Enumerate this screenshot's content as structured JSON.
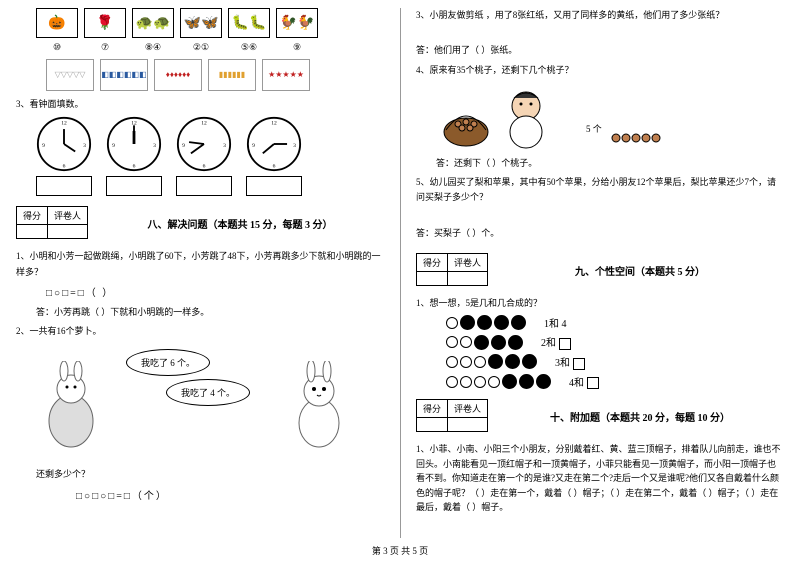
{
  "footer": "第 3 页 共 5 页",
  "left": {
    "icons": [
      "🎃",
      "🌹",
      "🐢🐢",
      "🦋🦋",
      "🐛🐛",
      "🐓🐓"
    ],
    "icon_nums": [
      "⑩",
      "⑦",
      "⑧④",
      "②①",
      "⑤⑥",
      "⑨"
    ],
    "shapes": [
      "▽▽▽▽▽",
      "◧◧◧◧◧◧",
      "♦♦♦♦♦♦",
      "▮▮▮▮▮▮",
      "★★★★★"
    ],
    "shape_colors": [
      "#a0a0a0",
      "#2a5aa0",
      "#c02020",
      "#e0a030",
      "#c02020"
    ],
    "q3_title": "3、看钟面填数。",
    "clocks": [
      {
        "h": 10,
        "m": 7
      },
      {
        "h": 12,
        "m": 0
      },
      {
        "h": 9,
        "m": 40
      },
      {
        "h": 3,
        "m": 40
      }
    ],
    "score_h1": "得分",
    "score_h2": "评卷人",
    "sec8_title": "八、解决问题（本题共 15 分，每题 3 分）",
    "q8_1": "1、小明和小芳一起做跳绳，小明跳了60下，小芳跳了48下，小芳再跳多少下就和小明跳的一样多？",
    "q8_1_formula": "□○□=□（  ）",
    "q8_1_ans": "答：小芳再跳（  ）下就和小明跳的一样多。",
    "q8_2": "2、一共有16个萝卜。",
    "bubble1": "我吃了 6 个。",
    "bubble2": "我吃了 4 个。",
    "q8_2_q": "还剩多少个？",
    "q8_2_formula": "□○□○□=□（个）"
  },
  "right": {
    "q3": "3、小朋友做剪纸 ，用了8张红纸，又用了同样多的黄纸，他们用了多少张纸？",
    "q3_ans": "答：他们用了（  ）张纸。",
    "q4": "4、原来有35个桃子，还剩下几个桃子？",
    "q4_note": "5 个",
    "q4_ans": "答：还剩下（  ）个桃子。",
    "q5": "5、幼儿园买了梨和苹果，其中有50个苹果，分给小朋友12个苹果后，梨比苹果还少7个，请问买梨子多少个？",
    "q5_ans": "答：买梨子（  ）个。",
    "score_h1": "得分",
    "score_h2": "评卷人",
    "sec9_title": "九、个性空间（本题共 5 分）",
    "q9_1": "1、想一想，5是几和几合成的？",
    "combos": [
      {
        "open": 1,
        "filled": 4,
        "label": "1和 4"
      },
      {
        "open": 2,
        "filled": 3,
        "label": "2和"
      },
      {
        "open": 3,
        "filled": 3,
        "label": "3和"
      },
      {
        "open": 4,
        "filled": 3,
        "label": "4和"
      }
    ],
    "sec10_title": "十、附加题（本题共 20 分，每题 10 分）",
    "q10": "1、小菲、小南、小阳三个小朋友，分别戴着红、黄、蓝三顶帽子，排着队儿向前走，谁也不回头。小南能看见一顶红帽子和一顶黄帽子，小菲只能看见一顶黄帽子，而小阳一顶帽子也看不到。你知道走在第一个的是谁?又走在第二个?走后一个又是谁呢?他们又各自戴着什么颜色的帽子呢？（  ）走在第一个，戴着（  ）帽子；（  ）走在第二个，戴着（  ）帽子；（  ）走在最后，戴着（  ）帽子。"
  }
}
